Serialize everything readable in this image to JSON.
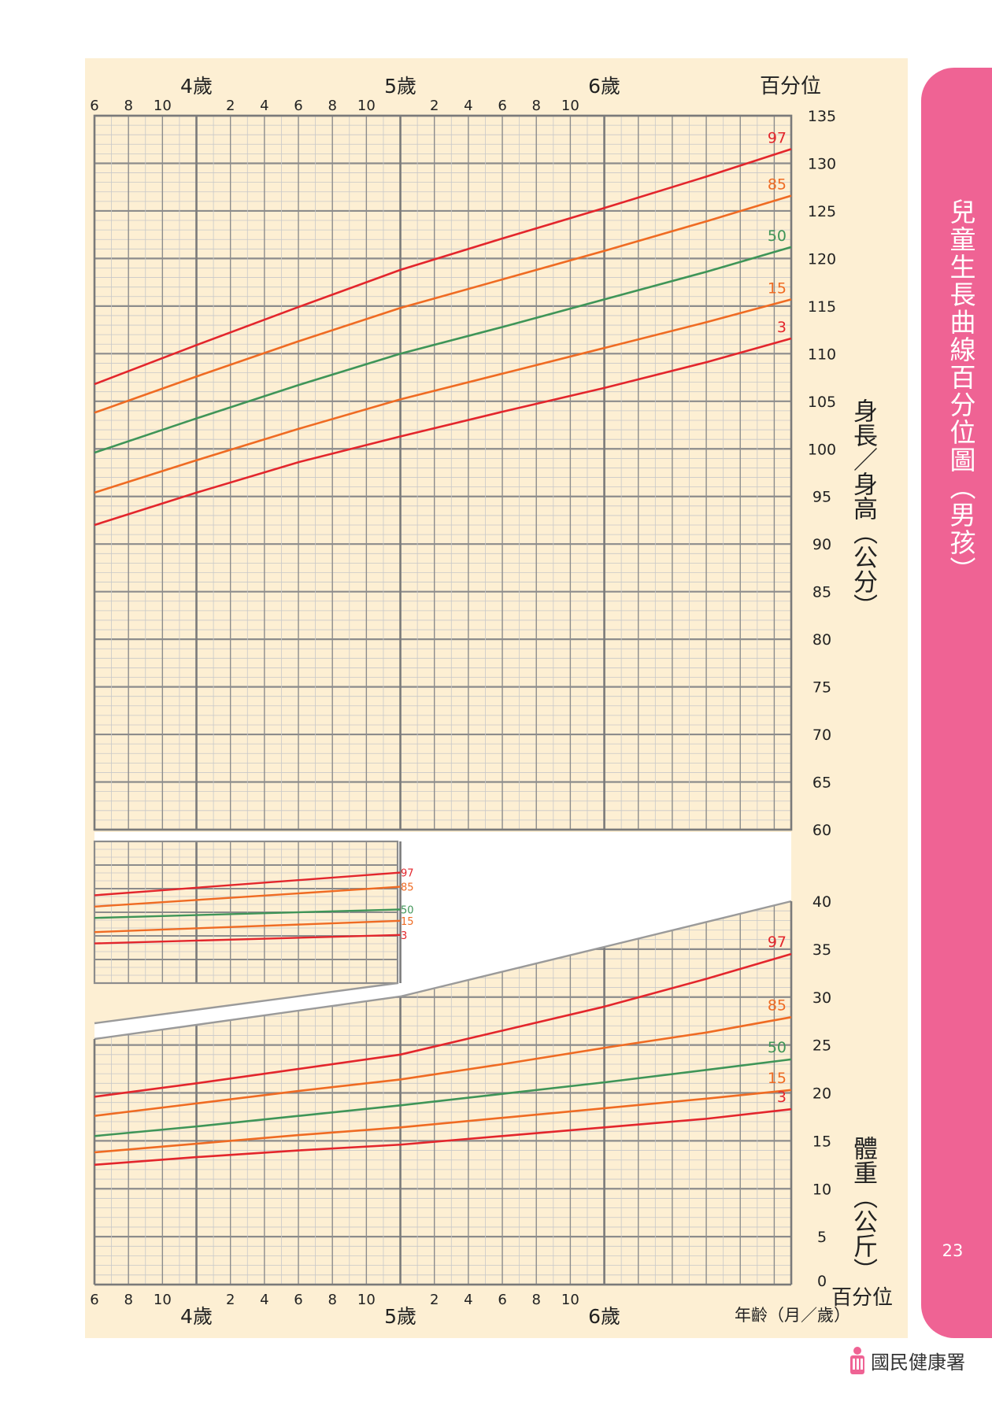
{
  "page": {
    "number": "23",
    "side_title": "兒童生長曲線百分位圖（男孩）",
    "agency": "國民健康署"
  },
  "colors": {
    "p97": "#e3262c",
    "p85": "#ef6b23",
    "p50": "#3f9558",
    "p15": "#ef6b23",
    "p3": "#e3262c",
    "panel": "#fdefd3",
    "tab": "#ef6394",
    "grid_major": "#8c8c8c",
    "grid_minor": "#c8c8c8"
  },
  "labels": {
    "percentile": "百分位",
    "height_axis": "身長／身高（公分）",
    "weight_axis": "體重（公斤）",
    "age_axis": "年齡（月／歲）",
    "years": [
      "4歲",
      "5歲",
      "6歲"
    ]
  },
  "chart_data": [
    {
      "type": "line",
      "name": "height",
      "x_unit": "months",
      "xlim": [
        42,
        83
      ],
      "ylim": [
        60,
        135
      ],
      "y_ticks": [
        60,
        65,
        70,
        75,
        80,
        85,
        90,
        95,
        100,
        105,
        110,
        115,
        120,
        125,
        130,
        135
      ],
      "x_tick_labels_top": [
        "6",
        "8",
        "10",
        "2",
        "4",
        "6",
        "8",
        "10",
        "2",
        "4",
        "6",
        "8",
        "10"
      ],
      "series": [
        {
          "name": "97",
          "x": [
            42,
            48,
            54,
            60,
            66,
            72,
            78,
            83
          ],
          "values": [
            106.8,
            110.9,
            114.9,
            118.8,
            122.1,
            125.3,
            128.6,
            131.5
          ]
        },
        {
          "name": "85",
          "x": [
            42,
            48,
            54,
            60,
            66,
            72,
            78,
            83
          ],
          "values": [
            103.8,
            107.6,
            111.3,
            114.8,
            117.8,
            120.8,
            123.9,
            126.6
          ]
        },
        {
          "name": "50",
          "x": [
            42,
            48,
            54,
            60,
            66,
            72,
            78,
            83
          ],
          "values": [
            99.6,
            103.2,
            106.7,
            110.0,
            112.8,
            115.7,
            118.6,
            121.2
          ]
        },
        {
          "name": "15",
          "x": [
            42,
            48,
            54,
            60,
            66,
            72,
            78,
            83
          ],
          "values": [
            95.4,
            98.8,
            102.1,
            105.2,
            107.9,
            110.6,
            113.3,
            115.7
          ]
        },
        {
          "name": "3",
          "x": [
            42,
            48,
            54,
            60,
            66,
            72,
            78,
            83
          ],
          "values": [
            92.0,
            95.4,
            98.6,
            101.3,
            103.9,
            106.4,
            109.1,
            111.6
          ]
        }
      ]
    },
    {
      "type": "line",
      "name": "weight",
      "x_unit": "months",
      "xlim": [
        42,
        83
      ],
      "ylim": [
        0,
        40
      ],
      "y_ticks": [
        0,
        5,
        10,
        15,
        20,
        25,
        30,
        35,
        40
      ],
      "x_tick_labels_bottom": [
        "6",
        "8",
        "10",
        "2",
        "4",
        "6",
        "8",
        "10",
        "2",
        "4",
        "6",
        "8",
        "10"
      ],
      "series": [
        {
          "name": "97",
          "x": [
            42,
            48,
            54,
            60,
            66,
            72,
            78,
            83
          ],
          "values": [
            19.6,
            21.0,
            22.5,
            24.0,
            26.5,
            29.0,
            31.9,
            34.5
          ]
        },
        {
          "name": "85",
          "x": [
            42,
            48,
            54,
            60,
            66,
            72,
            78,
            83
          ],
          "values": [
            17.6,
            18.9,
            20.2,
            21.4,
            23.0,
            24.7,
            26.3,
            27.9
          ]
        },
        {
          "name": "50",
          "x": [
            42,
            48,
            54,
            60,
            66,
            72,
            78,
            83
          ],
          "values": [
            15.5,
            16.5,
            17.6,
            18.7,
            19.9,
            21.1,
            22.4,
            23.5
          ]
        },
        {
          "name": "15",
          "x": [
            42,
            48,
            54,
            60,
            66,
            72,
            78,
            83
          ],
          "values": [
            13.8,
            14.7,
            15.6,
            16.4,
            17.4,
            18.4,
            19.4,
            20.3
          ]
        },
        {
          "name": "3",
          "x": [
            42,
            48,
            54,
            60,
            66,
            72,
            78,
            83
          ],
          "values": [
            12.5,
            13.3,
            14.0,
            14.6,
            15.5,
            16.4,
            17.3,
            18.3
          ]
        }
      ]
    },
    {
      "type": "line",
      "name": "weight-inset",
      "x_unit": "months",
      "xlim": [
        42,
        60
      ],
      "series": [
        {
          "name": "97",
          "x": [
            42,
            60
          ],
          "values": [
            0.62,
            0.78
          ]
        },
        {
          "name": "85",
          "x": [
            42,
            60
          ],
          "values": [
            0.54,
            0.68
          ]
        },
        {
          "name": "50",
          "x": [
            42,
            60
          ],
          "values": [
            0.46,
            0.52
          ]
        },
        {
          "name": "15",
          "x": [
            42,
            60
          ],
          "values": [
            0.36,
            0.44
          ]
        },
        {
          "name": "3",
          "x": [
            42,
            60
          ],
          "values": [
            0.28,
            0.34
          ]
        }
      ]
    }
  ]
}
